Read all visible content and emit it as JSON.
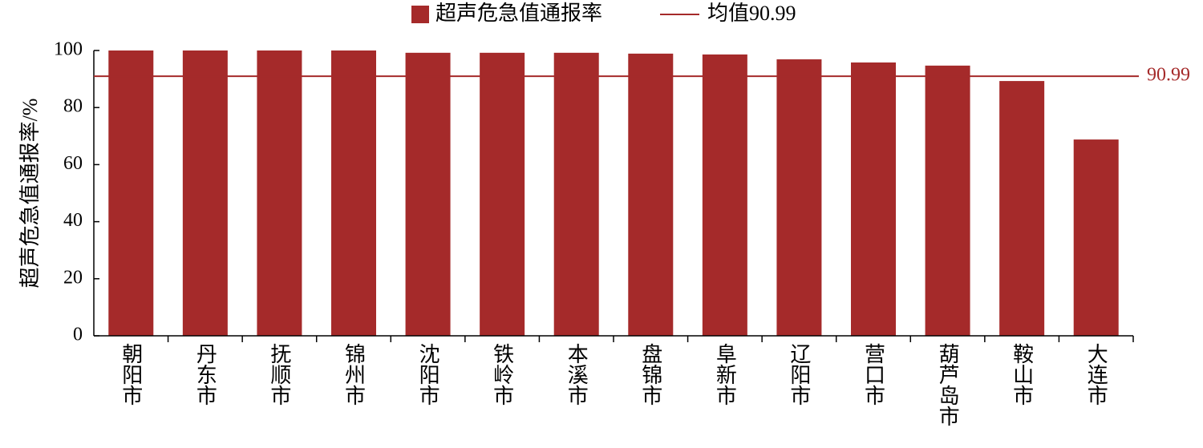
{
  "chart_data": {
    "type": "bar",
    "y_label": "超声危急值通报率/%",
    "categories": [
      "朝阳市",
      "丹东市",
      "抚顺市",
      "锦州市",
      "沈阳市",
      "铁岭市",
      "本溪市",
      "盘锦市",
      "阜新市",
      "辽阳市",
      "营口市",
      "葫芦岛市",
      "鞍山市",
      "大连市"
    ],
    "series": [
      {
        "name": "超声危急值通报率",
        "color": "#a52a2a",
        "values": [
          100,
          100,
          100,
          100,
          99.2,
          99.2,
          99.2,
          98.9,
          98.6,
          96.9,
          95.8,
          94.7,
          89.3,
          68.8
        ]
      }
    ],
    "mean_line": {
      "name": "均值90.99",
      "value": 90.99,
      "color": "#a52a2a"
    },
    "ylim": [
      0,
      100
    ],
    "yticks": [
      0,
      20,
      40,
      60,
      80,
      100
    ],
    "legend": "top"
  }
}
